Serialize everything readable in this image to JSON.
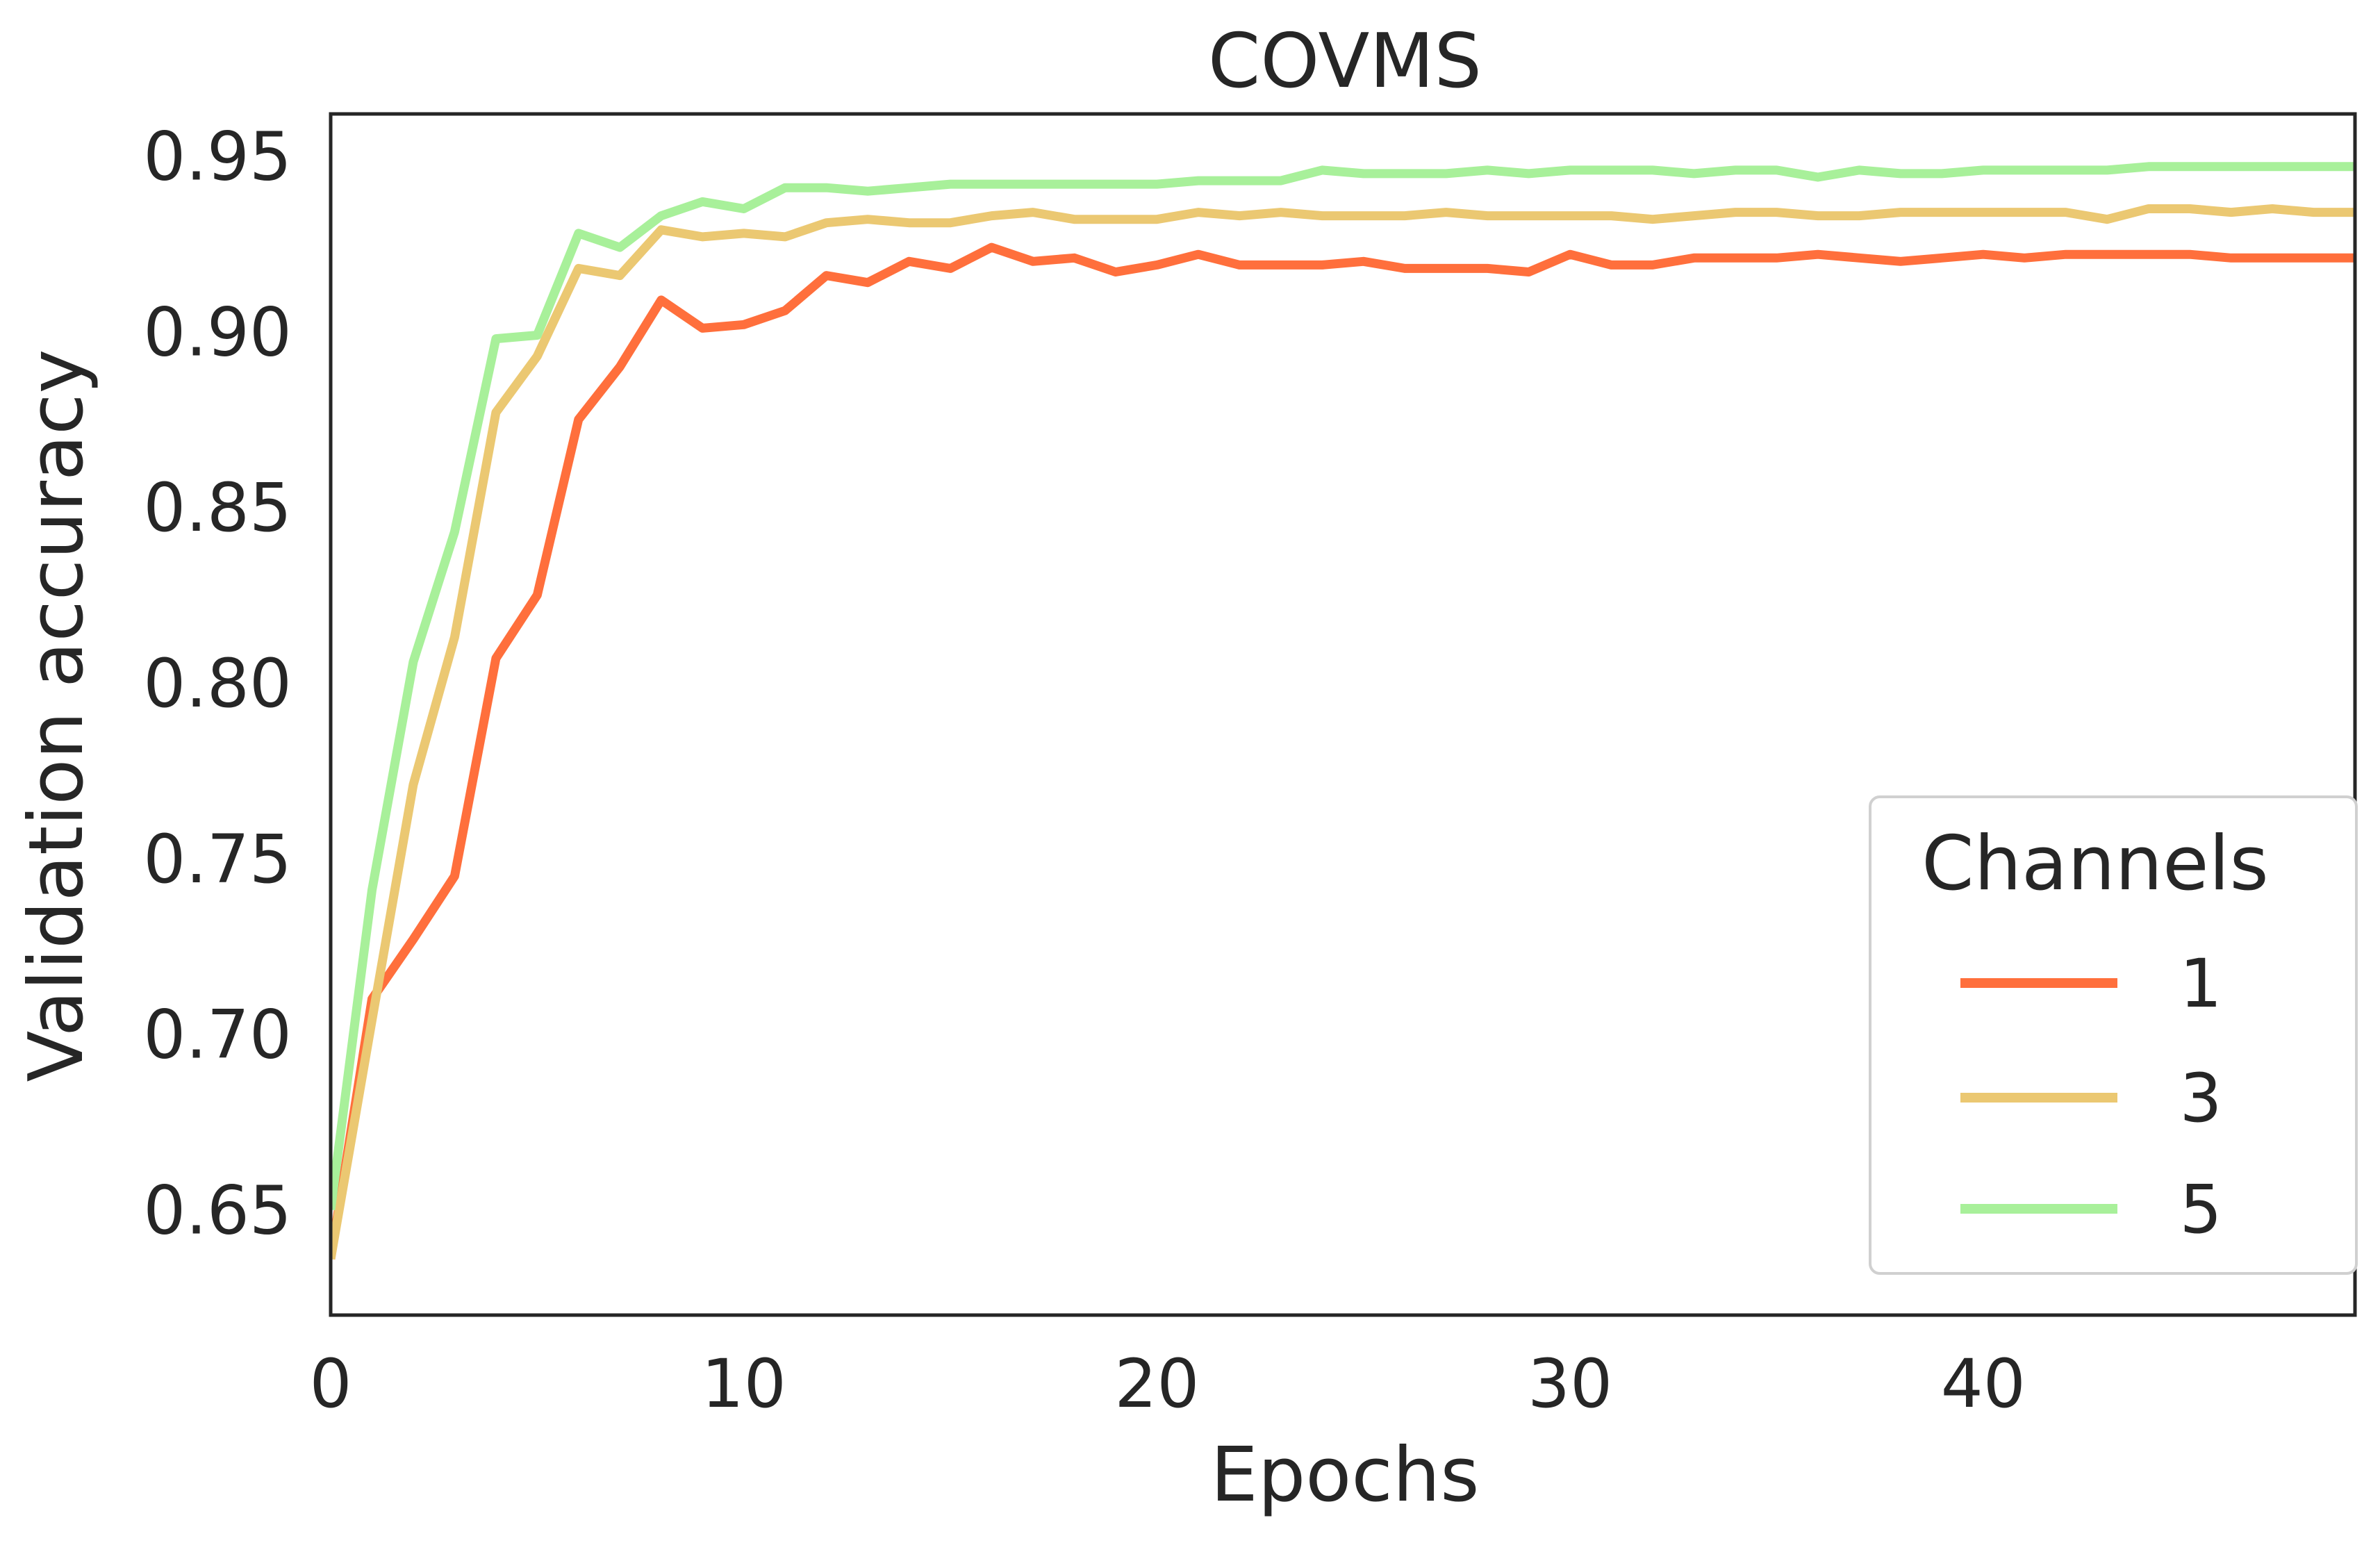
{
  "chart_data": {
    "type": "line",
    "title": "COVMS",
    "xlabel": "Epochs",
    "ylabel": "Validation accuracy",
    "xlim": [
      0,
      49
    ],
    "ylim": [
      0.62,
      0.962
    ],
    "xticks": [
      0,
      10,
      20,
      30,
      40
    ],
    "xtick_labels": [
      "0",
      "10",
      "20",
      "30",
      "40"
    ],
    "yticks": [
      0.65,
      0.7,
      0.75,
      0.8,
      0.85,
      0.9,
      0.95
    ],
    "ytick_labels": [
      "0.65",
      "0.70",
      "0.75",
      "0.80",
      "0.85",
      "0.90",
      "0.95"
    ],
    "grid": false,
    "legend": {
      "title": "Channels",
      "position": "lower right"
    },
    "x": [
      0,
      1,
      2,
      3,
      4,
      5,
      6,
      7,
      8,
      9,
      10,
      11,
      12,
      13,
      14,
      15,
      16,
      17,
      18,
      19,
      20,
      21,
      22,
      23,
      24,
      25,
      26,
      27,
      28,
      29,
      30,
      31,
      32,
      33,
      34,
      35,
      36,
      37,
      38,
      39,
      40,
      41,
      42,
      43,
      44,
      45,
      46,
      47,
      48,
      49
    ],
    "series": [
      {
        "name": "1",
        "color": "#ff6f3c",
        "values": [
          0.636,
          0.71,
          0.727,
          0.745,
          0.807,
          0.825,
          0.875,
          0.89,
          0.909,
          0.901,
          0.902,
          0.906,
          0.916,
          0.914,
          0.92,
          0.918,
          0.924,
          0.92,
          0.921,
          0.917,
          0.919,
          0.922,
          0.919,
          0.919,
          0.919,
          0.92,
          0.918,
          0.918,
          0.918,
          0.917,
          0.922,
          0.919,
          0.919,
          0.921,
          0.921,
          0.921,
          0.922,
          0.921,
          0.92,
          0.921,
          0.922,
          0.921,
          0.922,
          0.922,
          0.922,
          0.922,
          0.921,
          0.921,
          0.921,
          0.921
        ]
      },
      {
        "name": "3",
        "color": "#ebc872",
        "values": [
          0.636,
          0.704,
          0.771,
          0.813,
          0.877,
          0.893,
          0.918,
          0.916,
          0.929,
          0.927,
          0.928,
          0.927,
          0.931,
          0.932,
          0.931,
          0.931,
          0.933,
          0.934,
          0.932,
          0.932,
          0.932,
          0.934,
          0.933,
          0.934,
          0.933,
          0.933,
          0.933,
          0.934,
          0.933,
          0.933,
          0.933,
          0.933,
          0.932,
          0.933,
          0.934,
          0.934,
          0.933,
          0.933,
          0.934,
          0.934,
          0.934,
          0.934,
          0.934,
          0.932,
          0.935,
          0.935,
          0.934,
          0.935,
          0.934,
          0.934
        ]
      },
      {
        "name": "5",
        "color": "#a8f09a",
        "values": [
          0.65,
          0.741,
          0.806,
          0.843,
          0.898,
          0.899,
          0.928,
          0.924,
          0.933,
          0.937,
          0.935,
          0.941,
          0.941,
          0.94,
          0.941,
          0.942,
          0.942,
          0.942,
          0.942,
          0.942,
          0.942,
          0.943,
          0.943,
          0.943,
          0.946,
          0.945,
          0.945,
          0.945,
          0.946,
          0.945,
          0.946,
          0.946,
          0.946,
          0.945,
          0.946,
          0.946,
          0.944,
          0.946,
          0.945,
          0.945,
          0.946,
          0.946,
          0.946,
          0.946,
          0.947,
          0.947,
          0.947,
          0.947,
          0.947,
          0.947
        ]
      }
    ]
  }
}
